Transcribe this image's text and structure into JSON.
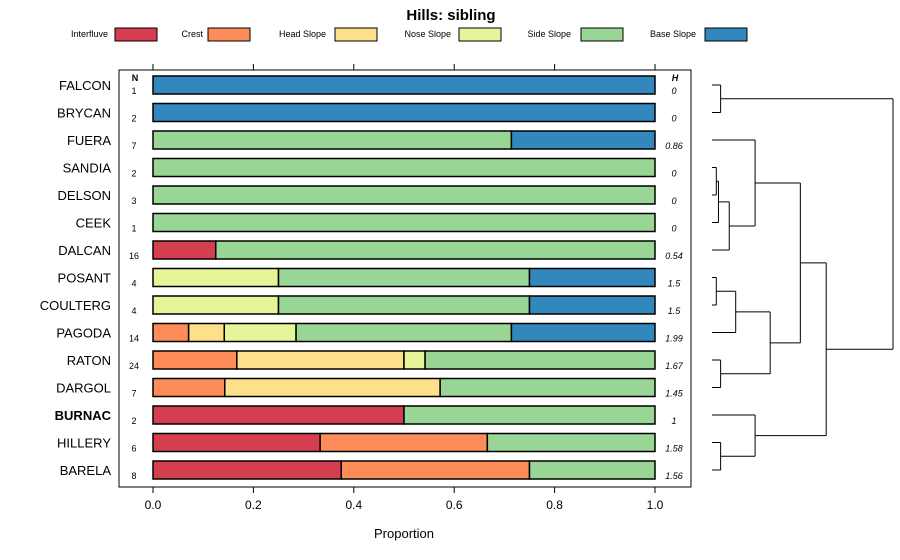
{
  "chart_data": {
    "type": "bar",
    "orientation": "horizontal",
    "stacked": true,
    "title": "Hills: sibling",
    "xlabel": "Proportion",
    "ylabel": "",
    "xlim": [
      0,
      1
    ],
    "x_ticks": [
      "0.0",
      "0.2",
      "0.4",
      "0.6",
      "0.8",
      "1.0"
    ],
    "count_header": "N",
    "entropy_header": "H",
    "legend_position": "top",
    "series": [
      {
        "name": "Interfluve",
        "color": "#D53E4F"
      },
      {
        "name": "Crest",
        "color": "#FC8D59"
      },
      {
        "name": "Head Slope",
        "color": "#FEE08B"
      },
      {
        "name": "Nose Slope",
        "color": "#E6F598"
      },
      {
        "name": "Side Slope",
        "color": "#99D594"
      },
      {
        "name": "Base Slope",
        "color": "#3288BD"
      }
    ],
    "rows": [
      {
        "label": "FALCON",
        "n": "1",
        "h": "0",
        "bold": false,
        "values": [
          0,
          0,
          0,
          0,
          0,
          1
        ]
      },
      {
        "label": "BRYCAN",
        "n": "2",
        "h": "0",
        "bold": false,
        "values": [
          0,
          0,
          0,
          0,
          0,
          1
        ]
      },
      {
        "label": "FUERA",
        "n": "7",
        "h": "0.86",
        "bold": false,
        "values": [
          0,
          0,
          0,
          0,
          0.714,
          0.286
        ]
      },
      {
        "label": "SANDIA",
        "n": "2",
        "h": "0",
        "bold": false,
        "values": [
          0,
          0,
          0,
          0,
          1,
          0
        ]
      },
      {
        "label": "DELSON",
        "n": "3",
        "h": "0",
        "bold": false,
        "values": [
          0,
          0,
          0,
          0,
          1,
          0
        ]
      },
      {
        "label": "CEEK",
        "n": "1",
        "h": "0",
        "bold": false,
        "values": [
          0,
          0,
          0,
          0,
          1,
          0
        ]
      },
      {
        "label": "DALCAN",
        "n": "16",
        "h": "0.54",
        "bold": false,
        "values": [
          0.125,
          0,
          0,
          0,
          0.875,
          0
        ]
      },
      {
        "label": "POSANT",
        "n": "4",
        "h": "1.5",
        "bold": false,
        "values": [
          0,
          0,
          0,
          0.25,
          0.5,
          0.25
        ]
      },
      {
        "label": "COULTERG",
        "n": "4",
        "h": "1.5",
        "bold": false,
        "values": [
          0,
          0,
          0,
          0.25,
          0.5,
          0.25
        ]
      },
      {
        "label": "PAGODA",
        "n": "14",
        "h": "1.99",
        "bold": false,
        "values": [
          0,
          0.071,
          0.071,
          0.143,
          0.429,
          0.286
        ]
      },
      {
        "label": "RATON",
        "n": "24",
        "h": "1.67",
        "bold": false,
        "values": [
          0,
          0.167,
          0.333,
          0.042,
          0.458,
          0
        ]
      },
      {
        "label": "DARGOL",
        "n": "7",
        "h": "1.45",
        "bold": false,
        "values": [
          0,
          0.143,
          0.429,
          0,
          0.428,
          0
        ]
      },
      {
        "label": "BURNAC",
        "n": "2",
        "h": "1",
        "bold": true,
        "values": [
          0.5,
          0,
          0,
          0,
          0.5,
          0
        ]
      },
      {
        "label": "HILLERY",
        "n": "6",
        "h": "1.58",
        "bold": false,
        "values": [
          0.333,
          0.333,
          0,
          0,
          0.334,
          0
        ]
      },
      {
        "label": "BARELA",
        "n": "8",
        "h": "1.56",
        "bold": false,
        "values": [
          0.375,
          0.375,
          0,
          0,
          0.25,
          0
        ]
      }
    ],
    "dendrogram_leaf_order": [
      "FALCON",
      "BRYCAN",
      "FUERA",
      "SANDIA",
      "DELSON",
      "CEEK",
      "DALCAN",
      "POSANT",
      "COULTERG",
      "PAGODA",
      "RATON",
      "DARGOL",
      "BURNAC",
      "HILLERY",
      "BARELA"
    ],
    "dendrogram_merges": [
      {
        "a": [
          0
        ],
        "b": [
          1
        ],
        "height": 0.04
      },
      {
        "a": [
          3
        ],
        "b": [
          4
        ],
        "height": 0.02
      },
      {
        "a": [
          3,
          4
        ],
        "b": [
          5
        ],
        "height": 0.03
      },
      {
        "a": [
          3,
          4,
          5
        ],
        "b": [
          6
        ],
        "height": 0.08
      },
      {
        "a": [
          2
        ],
        "b": [
          3,
          4,
          5,
          6
        ],
        "height": 0.2
      },
      {
        "a": [
          7
        ],
        "b": [
          8
        ],
        "height": 0.02
      },
      {
        "a": [
          7,
          8
        ],
        "b": [
          9
        ],
        "height": 0.11
      },
      {
        "a": [
          10
        ],
        "b": [
          11
        ],
        "height": 0.04
      },
      {
        "a": [
          7,
          8,
          9
        ],
        "b": [
          10,
          11
        ],
        "height": 0.27
      },
      {
        "a": [
          2,
          3,
          4,
          5,
          6
        ],
        "b": [
          7,
          8,
          9,
          10,
          11
        ],
        "height": 0.41
      },
      {
        "a": [
          13
        ],
        "b": [
          14
        ],
        "height": 0.04
      },
      {
        "a": [
          12
        ],
        "b": [
          13,
          14
        ],
        "height": 0.2
      },
      {
        "a": [
          2,
          3,
          4,
          5,
          6,
          7,
          8,
          9,
          10,
          11
        ],
        "b": [
          12,
          13,
          14
        ],
        "height": 0.53
      },
      {
        "a": [
          0,
          1
        ],
        "b": [
          2,
          3,
          4,
          5,
          6,
          7,
          8,
          9,
          10,
          11,
          12,
          13,
          14
        ],
        "height": 0.84
      }
    ]
  }
}
